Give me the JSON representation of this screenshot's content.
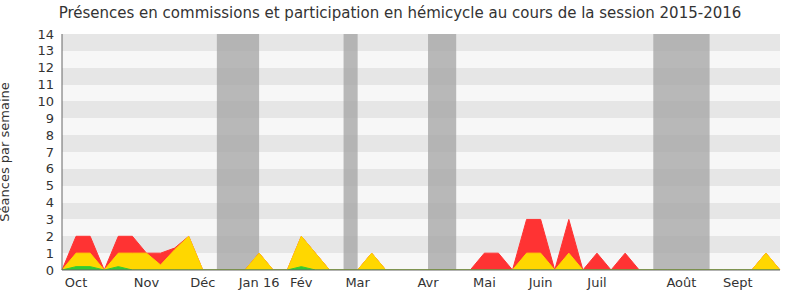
{
  "chart_data": {
    "type": "area",
    "title": "Présences en commissions et participation en hémicycle au cours de la session 2015-2016",
    "y_label": "Séances par semaine",
    "categories": [
      null,
      "Oct",
      null,
      null,
      null,
      null,
      "Nov",
      null,
      null,
      null,
      "Déc",
      null,
      null,
      null,
      "Jan 16",
      null,
      null,
      "Fév",
      null,
      null,
      null,
      "Mar",
      null,
      null,
      null,
      null,
      "Avr",
      null,
      null,
      null,
      "Mai",
      null,
      null,
      null,
      "Juin",
      null,
      null,
      null,
      "Juil",
      null,
      null,
      null,
      null,
      null,
      "Août",
      null,
      null,
      null,
      "Sept",
      null,
      null,
      null
    ],
    "series": [
      {
        "color": "#ff3333",
        "values": [
          0,
          2,
          2,
          0,
          2,
          2,
          1,
          1,
          1.3,
          2,
          0,
          0,
          0,
          0,
          1,
          0,
          0,
          2,
          1,
          0,
          0,
          0,
          1,
          0,
          0,
          0,
          0,
          0,
          0,
          0,
          1,
          1,
          0,
          3,
          3,
          0,
          3,
          0,
          1,
          0,
          1,
          0,
          0,
          0,
          0,
          0,
          0,
          0,
          0,
          0,
          1,
          0
        ]
      },
      {
        "color": "#ffd700",
        "values": [
          0,
          1,
          1,
          0,
          1,
          1,
          1,
          0.3,
          1.2,
          2,
          0,
          0,
          0,
          0,
          1,
          0,
          0,
          2,
          1,
          0,
          0,
          0,
          1,
          0,
          0,
          0,
          0,
          0,
          0,
          0,
          0,
          0,
          0,
          1,
          1,
          0,
          1,
          0,
          0,
          0,
          0,
          0,
          0,
          0,
          0,
          0,
          0,
          0,
          0,
          0,
          1,
          0
        ]
      },
      {
        "color": "#33cc33",
        "values": [
          0,
          0.2,
          0.2,
          0,
          0.2,
          0,
          0,
          0,
          0,
          0,
          0,
          0,
          0,
          0,
          0,
          0,
          0,
          0.2,
          0,
          0,
          0,
          0,
          0,
          0,
          0,
          0,
          0,
          0,
          0,
          0,
          0,
          0,
          0,
          0,
          0,
          0,
          0,
          0,
          0,
          0,
          0,
          0,
          0,
          0,
          0,
          0,
          0,
          0,
          0,
          0,
          0,
          0
        ]
      }
    ],
    "shaded_periods": [
      {
        "x1": 11,
        "x2": 14
      },
      {
        "x1": 20,
        "x2": 21
      },
      {
        "x1": 26,
        "x2": 28
      },
      {
        "x1": 42,
        "x2": 46
      }
    ],
    "ylim": [
      0,
      14
    ],
    "yticks": [
      0,
      1,
      2,
      3,
      4,
      5,
      6,
      7,
      8,
      9,
      10,
      11,
      12,
      13,
      14
    ],
    "grid": true
  }
}
